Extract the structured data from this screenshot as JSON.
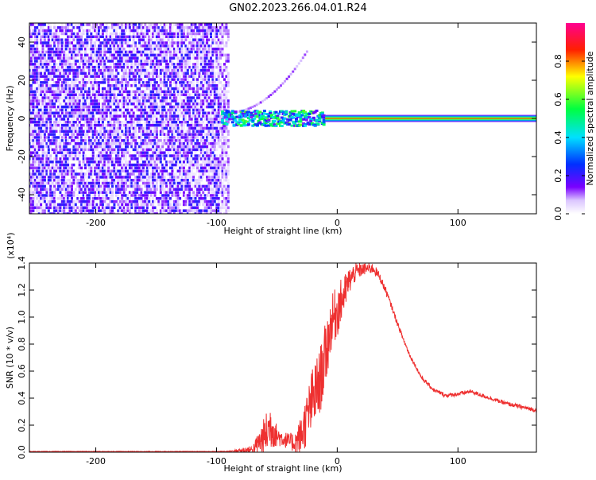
{
  "title": "GN02.2023.266.04.01.R24",
  "colors": {
    "snr_line": "#ee3030",
    "axes": "#000000"
  },
  "chart_data": [
    {
      "type": "heatmap",
      "xlabel": "Height of straight line (km)",
      "ylabel": "Frequency (Hz)",
      "xlim": [
        -255,
        165
      ],
      "ylim": [
        -50,
        50
      ],
      "xticks": [
        -200,
        -100,
        0,
        100
      ],
      "xtick_labels": [
        "-200",
        "-100",
        "0",
        "100"
      ],
      "yticks": [
        -40,
        -20,
        0,
        20,
        40
      ],
      "ytick_labels": [
        "-40",
        "-20",
        "0",
        "20",
        "40"
      ],
      "colorbar": {
        "label": "Normalized spectral amplitude",
        "range": [
          0,
          1
        ],
        "ticks": [
          0.0,
          0.2,
          0.4,
          0.6,
          0.8
        ],
        "tick_labels": [
          "0.0",
          "0.2",
          "0.4",
          "0.6",
          "0.8"
        ],
        "colormap": "rainbow (white-violet-blue-cyan-green-yellow-red-magenta)"
      },
      "features": {
        "noise_region_x": [
          -255,
          -90
        ],
        "noise_amplitude": 0.25,
        "signal_band_frequency": 0,
        "signal_start_x": -95,
        "signal_strong_from_x": -10,
        "signal_amplitude_max": 0.85,
        "arc_x": [
          -90,
          -25
        ],
        "arc_frequency": [
          3,
          35
        ]
      }
    },
    {
      "type": "line",
      "xlabel": "Height of straight line (km)",
      "ylabel": "SNR (10 * v/v)",
      "y_multiplier": "(x10⁴)",
      "xlim": [
        -255,
        165
      ],
      "ylim": [
        0,
        1.4
      ],
      "xticks": [
        -200,
        -100,
        0,
        100
      ],
      "xtick_labels": [
        "-200",
        "-100",
        "0",
        "100"
      ],
      "yticks": [
        0.0,
        0.2,
        0.4,
        0.6,
        0.8,
        1.0,
        1.2,
        1.4
      ],
      "ytick_labels": [
        "0.0",
        "0.2",
        "0.4",
        "0.6",
        "0.8",
        "1.0",
        "1.2",
        "1.4"
      ],
      "series": [
        {
          "x": [
            -255,
            -200,
            -150,
            -100,
            -90,
            -70,
            -60,
            -55,
            -50,
            -45,
            -40,
            -35,
            -30,
            -25,
            -20,
            -15,
            -10,
            -5,
            0,
            5,
            10,
            15,
            20,
            25,
            30,
            35,
            40,
            45,
            50,
            55,
            60,
            70,
            80,
            90,
            100,
            110,
            120,
            130,
            140,
            150,
            165
          ],
          "values": [
            0.005,
            0.005,
            0.005,
            0.005,
            0.006,
            0.02,
            0.12,
            0.2,
            0.12,
            0.1,
            0.08,
            0.07,
            0.12,
            0.25,
            0.4,
            0.5,
            0.7,
            0.95,
            1.05,
            1.15,
            1.27,
            1.33,
            1.35,
            1.36,
            1.36,
            1.3,
            1.2,
            1.08,
            0.95,
            0.83,
            0.72,
            0.55,
            0.46,
            0.42,
            0.43,
            0.45,
            0.42,
            0.39,
            0.36,
            0.34,
            0.31
          ],
          "noise_amplitude": [
            0.002,
            0.002,
            0.002,
            0.002,
            0.003,
            0.03,
            0.15,
            0.18,
            0.08,
            0.06,
            0.06,
            0.08,
            0.15,
            0.2,
            0.25,
            0.25,
            0.25,
            0.2,
            0.2,
            0.15,
            0.1,
            0.07,
            0.05,
            0.04,
            0.04,
            0.03,
            0.03,
            0.02,
            0.02,
            0.02,
            0.015,
            0.015,
            0.015,
            0.015,
            0.015,
            0.015,
            0.015,
            0.015,
            0.015,
            0.015,
            0.015
          ]
        }
      ]
    }
  ]
}
